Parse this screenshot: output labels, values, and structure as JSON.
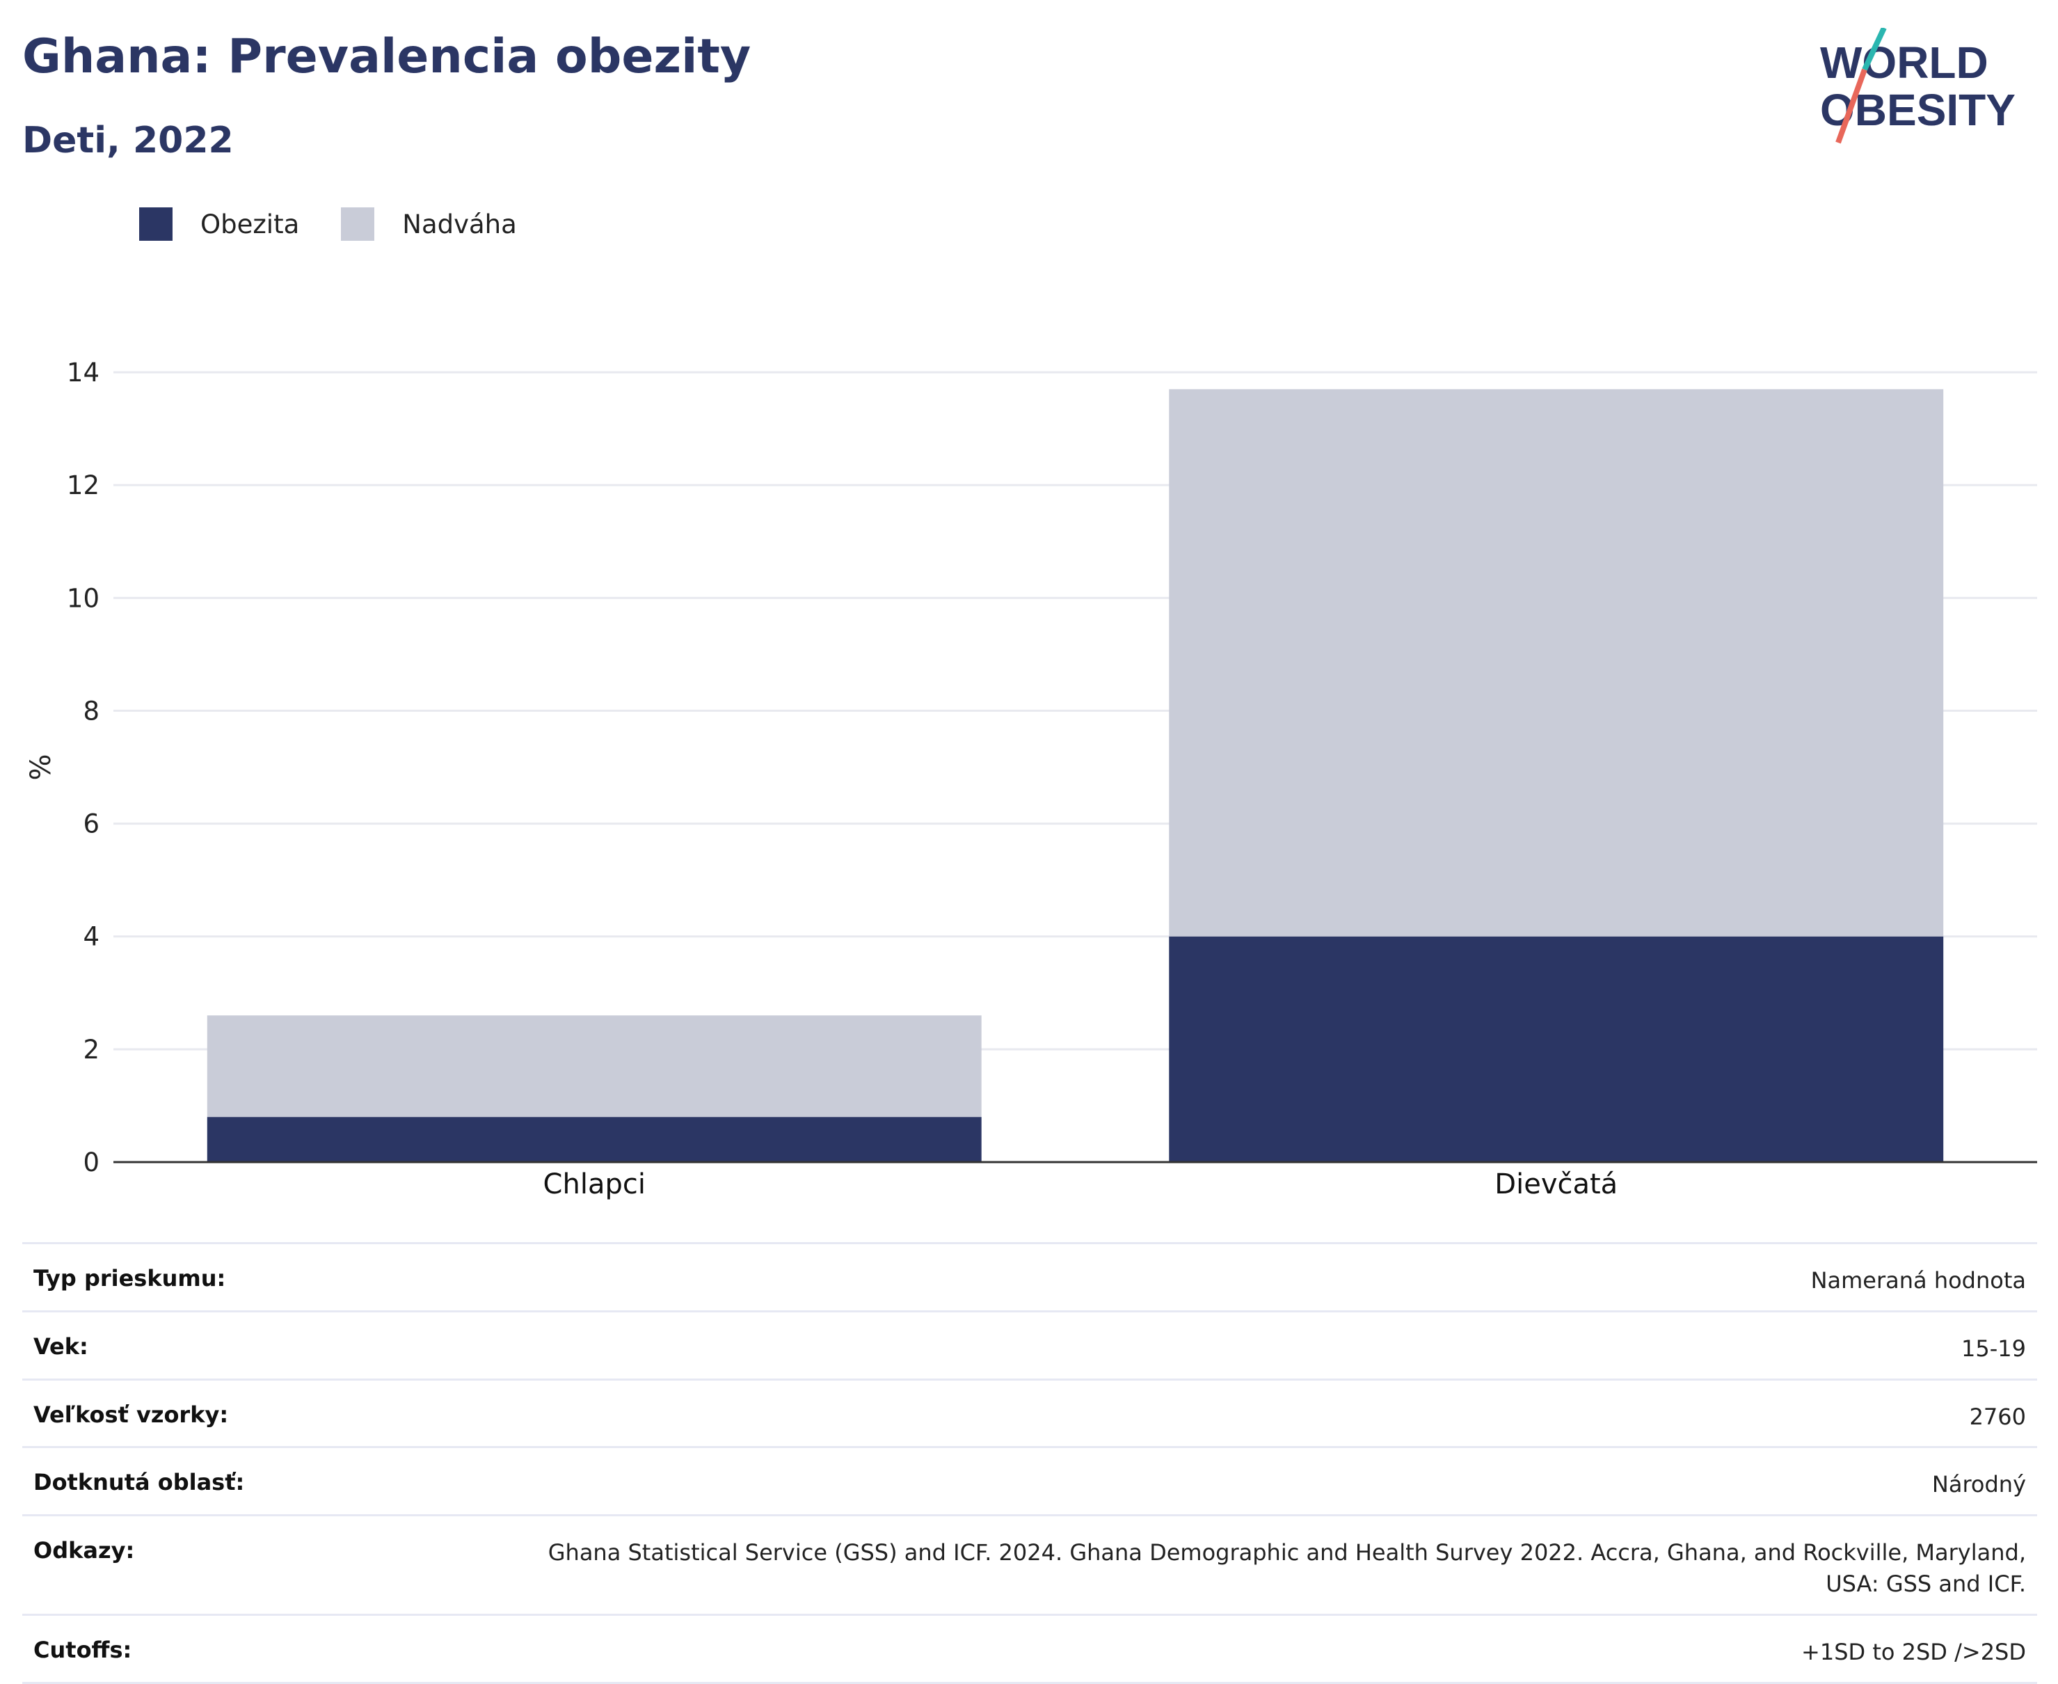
{
  "header": {
    "title": "Ghana: Prevalencia obezity",
    "subtitle": "Deti, 2022"
  },
  "logo": {
    "line1": "WORLD",
    "line2": "OBESITY"
  },
  "legend": {
    "items": [
      {
        "label": "Obezita",
        "color": "#2b3664"
      },
      {
        "label": "Nadváha",
        "color": "#c9ccd8"
      }
    ]
  },
  "chart_data": {
    "type": "bar",
    "stacked": true,
    "categories": [
      "Chlapci",
      "Dievčatá"
    ],
    "series": [
      {
        "name": "Obezita",
        "color": "#2b3664",
        "values": [
          0.8,
          4.0
        ]
      },
      {
        "name": "Nadváha",
        "color": "#c9ccd8",
        "values": [
          1.8,
          9.7
        ]
      }
    ],
    "ylabel": "%",
    "ylim": [
      0,
      14
    ],
    "yticks": [
      0,
      2,
      4,
      6,
      8,
      10,
      12,
      14
    ],
    "grid": true,
    "legend_position": "top-left"
  },
  "info": {
    "rows": [
      {
        "label": "Typ prieskumu:",
        "value": "Nameraná hodnota"
      },
      {
        "label": "Vek:",
        "value": "15-19"
      },
      {
        "label": "Veľkosť vzorky:",
        "value": "2760"
      },
      {
        "label": "Dotknutá oblasť:",
        "value": "Národný"
      },
      {
        "label": "Odkazy:",
        "value": "Ghana Statistical Service (GSS) and ICF. 2024. Ghana Demographic and Health Survey 2022. Accra, Ghana, and Rockville, Maryland, USA: GSS and ICF."
      },
      {
        "label": "Cutoffs:",
        "value": "+1SD to 2SD />2SD"
      }
    ]
  }
}
